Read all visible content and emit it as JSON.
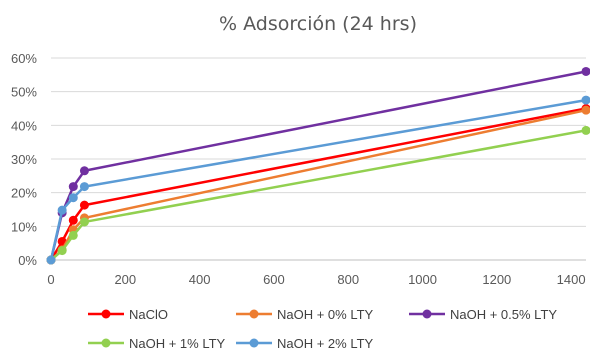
{
  "chart_data": {
    "type": "scatter",
    "title": "% Adsorción (24 hrs)",
    "xlabel": "",
    "ylabel": "",
    "xlim": [
      0,
      1440
    ],
    "ylim": [
      0,
      0.6
    ],
    "x_ticks": [
      "0",
      "200",
      "400",
      "600",
      "800",
      "1000",
      "1200",
      "1400"
    ],
    "y_ticks": [
      "0%",
      "10%",
      "20%",
      "30%",
      "40%",
      "50%",
      "60%"
    ],
    "grid": true,
    "legend_position": "bottom",
    "series": [
      {
        "name": "NaClO",
        "color": "#ff0000",
        "x": [
          0,
          30,
          60,
          90,
          1440
        ],
        "y": [
          0,
          0.055,
          0.118,
          0.163,
          0.45
        ]
      },
      {
        "name": "NaOH + 0% LTY",
        "color": "#ed7d31",
        "x": [
          0,
          30,
          60,
          90,
          1440
        ],
        "y": [
          0,
          0.03,
          0.09,
          0.125,
          0.445
        ]
      },
      {
        "name": "NaOH + 0.5% LTY",
        "color": "#7030a0",
        "x": [
          0,
          30,
          60,
          90,
          1440
        ],
        "y": [
          0,
          0.14,
          0.218,
          0.265,
          0.56
        ]
      },
      {
        "name": "NaOH + 1% LTY",
        "color": "#92d050",
        "x": [
          0,
          30,
          60,
          90,
          1440
        ],
        "y": [
          0,
          0.028,
          0.073,
          0.113,
          0.385
        ]
      },
      {
        "name": "NaOH + 2% LTY",
        "color": "#5b9bd5",
        "x": [
          0,
          30,
          60,
          90,
          1440
        ],
        "y": [
          0,
          0.148,
          0.185,
          0.218,
          0.475
        ]
      }
    ]
  }
}
